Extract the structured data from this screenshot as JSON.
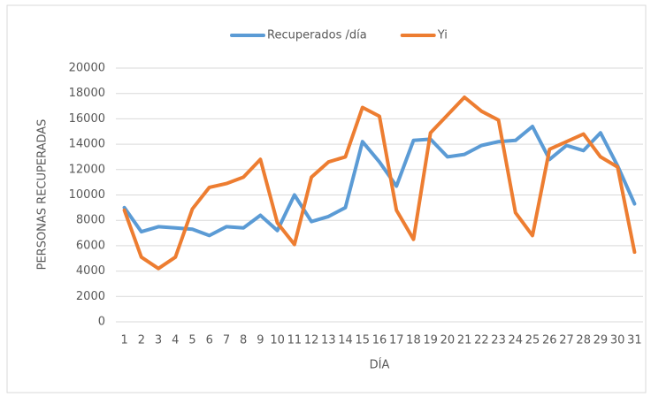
{
  "chart_data": {
    "type": "line",
    "y_label": "PERSONAS RECUPERADAS",
    "x_label": "DÍA",
    "categories": [
      "1",
      "2",
      "3",
      "4",
      "5",
      "6",
      "7",
      "8",
      "9",
      "10",
      "11",
      "12",
      "13",
      "14",
      "15",
      "16",
      "17",
      "18",
      "19",
      "20",
      "21",
      "22",
      "23",
      "24",
      "25",
      "26",
      "27",
      "28",
      "29",
      "30",
      "31"
    ],
    "series": [
      {
        "name": "Recuperados /día",
        "color": "#5b9bd5",
        "values": [
          9000,
          7100,
          7500,
          7400,
          7300,
          6800,
          7500,
          7400,
          8400,
          7200,
          10000,
          7900,
          8300,
          9000,
          14200,
          12600,
          10700,
          14300,
          14400,
          13000,
          13200,
          13900,
          14200,
          14300,
          15400,
          12800,
          13900,
          13500,
          14900,
          12300,
          9300
        ]
      },
      {
        "name": "Yi",
        "color": "#ed7d31",
        "values": [
          8800,
          5100,
          4200,
          5100,
          8900,
          10600,
          10900,
          11400,
          12800,
          7800,
          6100,
          11400,
          12600,
          13000,
          16900,
          16200,
          8800,
          6500,
          14900,
          16300,
          17700,
          16600,
          15900,
          8600,
          6800,
          13600,
          14200,
          14800,
          13000,
          12200,
          5500
        ]
      }
    ],
    "ylim": [
      0,
      20000
    ],
    "yticks": [
      0,
      2000,
      4000,
      6000,
      8000,
      10000,
      12000,
      14000,
      16000,
      18000,
      20000
    ],
    "grid": true,
    "legend": "top"
  }
}
